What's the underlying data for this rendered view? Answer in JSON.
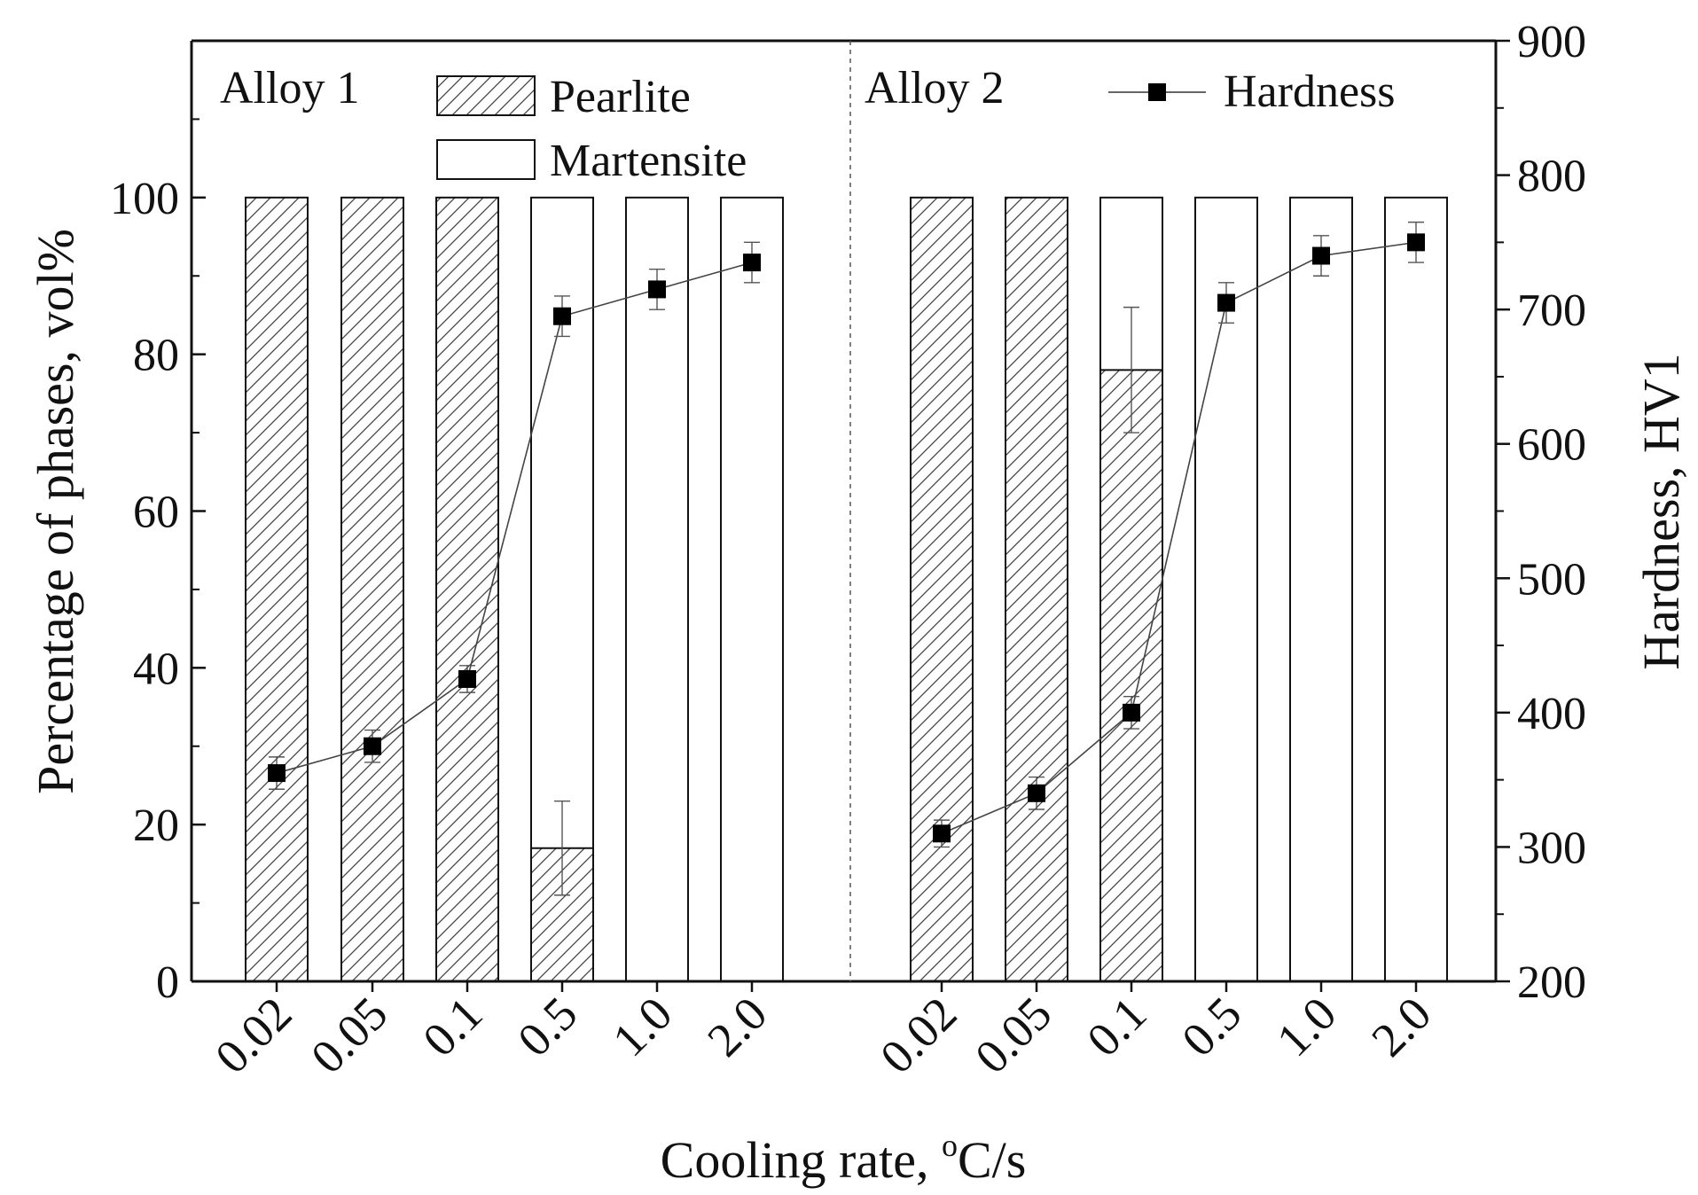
{
  "chart_data": {
    "type": "bar",
    "subtype": "stacked-bar-with-line-secondary-axis",
    "xlabel_prefix": "Cooling rate, ",
    "xlabel_sup": "o",
    "xlabel_suffix": "C/s",
    "ylabel": "Percentage of phases, vol%",
    "ylabel2": "Hardness, HV1",
    "ylim": [
      0,
      120
    ],
    "ylim2": [
      200,
      900
    ],
    "yticks": [
      "0",
      "20",
      "40",
      "60",
      "80",
      "100"
    ],
    "yticks2": [
      "200",
      "300",
      "400",
      "500",
      "600",
      "700",
      "800",
      "900"
    ],
    "legend": {
      "pearlite": "Pearlite",
      "martensite": "Martensite",
      "hardness": "Hardness"
    },
    "groups": [
      {
        "name": "Alloy 1",
        "categories": [
          "0.02",
          "0.05",
          "0.1",
          "0.5",
          "1.0",
          "2.0"
        ],
        "pearlite": [
          100,
          100,
          100,
          17,
          0,
          0
        ],
        "martensite": [
          0,
          0,
          0,
          83,
          100,
          100
        ],
        "pearlite_err": [
          null,
          null,
          null,
          6,
          null,
          null
        ],
        "hardness": [
          355,
          375,
          425,
          695,
          715,
          735
        ],
        "hardness_err": [
          12,
          12,
          10,
          15,
          15,
          15
        ]
      },
      {
        "name": "Alloy 2",
        "categories": [
          "0.02",
          "0.05",
          "0.1",
          "0.5",
          "1.0",
          "2.0"
        ],
        "pearlite": [
          100,
          100,
          78,
          0,
          0,
          0
        ],
        "martensite": [
          0,
          0,
          22,
          100,
          100,
          100
        ],
        "pearlite_err": [
          null,
          null,
          8,
          null,
          null,
          null
        ],
        "hardness": [
          310,
          340,
          400,
          705,
          740,
          750
        ],
        "hardness_err": [
          10,
          12,
          12,
          15,
          15,
          15
        ]
      }
    ]
  }
}
